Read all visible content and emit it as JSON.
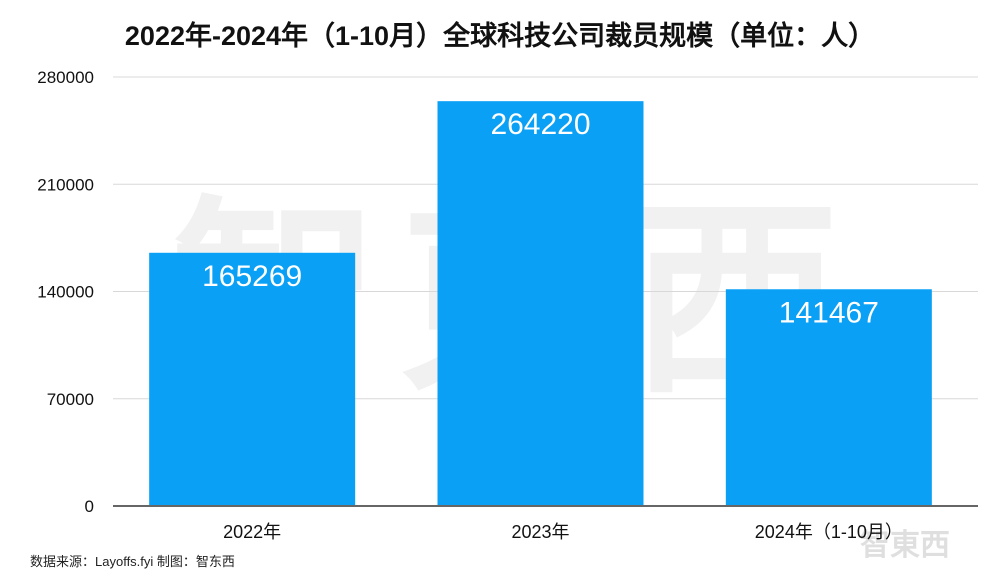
{
  "chart_data": {
    "type": "bar",
    "title": "2022年-2024年（1-10月）全球科技公司裁员规模（单位：人）",
    "categories": [
      "2022年",
      "2023年",
      "2024年（1-10月）"
    ],
    "values": [
      165269,
      264220,
      141467
    ],
    "ylim": [
      0,
      280000
    ],
    "yticks": [
      0,
      70000,
      140000,
      210000,
      280000
    ],
    "grid": true,
    "bar_color": "#0aa0f5",
    "data_labels": true
  },
  "source": "数据来源：Layoffs.fyi    制图：智东西",
  "watermark": "智東西"
}
